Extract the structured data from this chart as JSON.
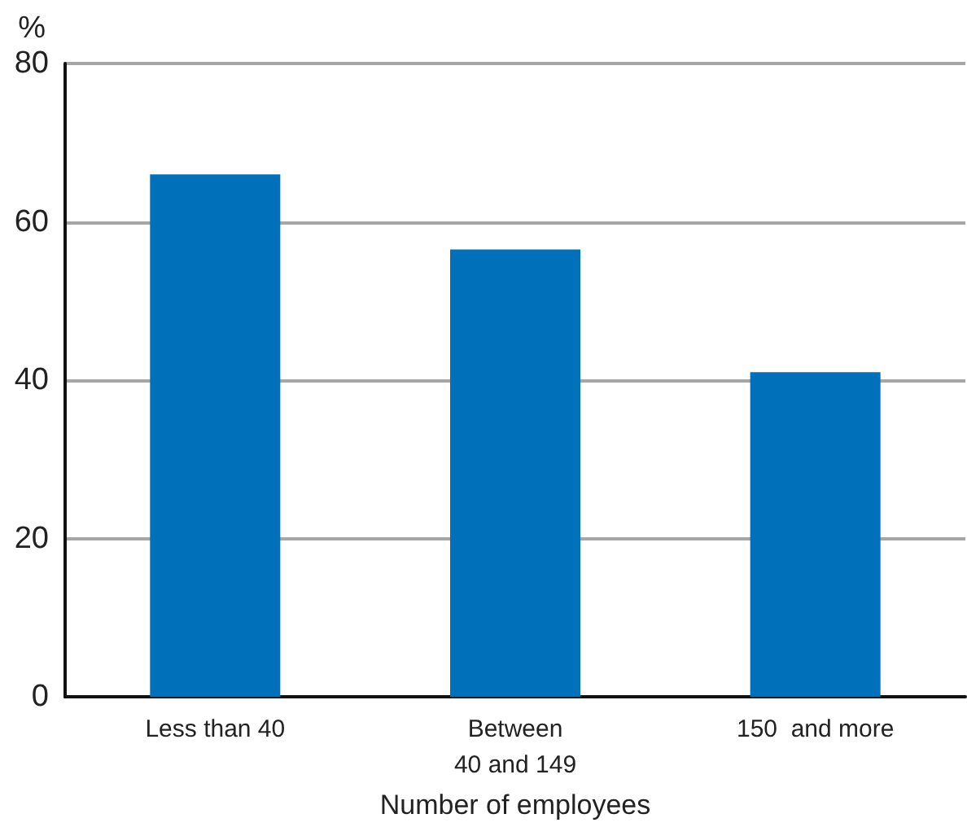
{
  "chart_data": {
    "type": "bar",
    "ylabel": "%",
    "xlabel": "Number of employees",
    "categories": [
      "Less than 40",
      "Between 40 and 149",
      "150  and more"
    ],
    "values": [
      66,
      56.5,
      41
    ],
    "color": "#0070ba",
    "ylim": [
      0,
      80
    ],
    "yticks": [
      0,
      20,
      40,
      60,
      80
    ],
    "grid": "y"
  }
}
